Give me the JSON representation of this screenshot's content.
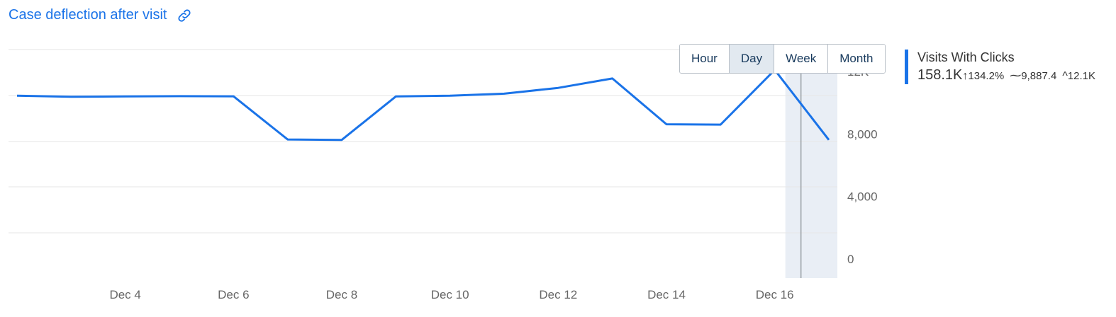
{
  "header": {
    "title": "Case deflection after visit",
    "link_icon": "link-icon"
  },
  "controls": {
    "granularity": [
      "Hour",
      "Day",
      "Week",
      "Month"
    ],
    "selected": "Day"
  },
  "legend": {
    "series_name": "Visits With Clicks",
    "total": "158.1K",
    "change_symbol": "↑",
    "change": "134.2%",
    "avg_symbol": "⁓",
    "average": "9,887.4",
    "max_symbol": "^",
    "maximum": "12.1K",
    "color": "#1a73e8"
  },
  "chart_data": {
    "type": "line",
    "title": "Case deflection after visit",
    "xlabel": "",
    "ylabel": "",
    "x": [
      "Dec 2",
      "Dec 3",
      "Dec 4",
      "Dec 5",
      "Dec 6",
      "Dec 7",
      "Dec 8",
      "Dec 9",
      "Dec 10",
      "Dec 11",
      "Dec 12",
      "Dec 13",
      "Dec 14",
      "Dec 15",
      "Dec 16",
      "Dec 17"
    ],
    "x_tick_labels": [
      "Dec 4",
      "Dec 6",
      "Dec 8",
      "Dec 10",
      "Dec 12",
      "Dec 14",
      "Dec 16"
    ],
    "y_ticks": [
      0,
      4000,
      8000,
      12000
    ],
    "y_tick_labels": [
      "0",
      "4,000",
      "8,000",
      "12K"
    ],
    "ylim": [
      0,
      14000
    ],
    "grid": true,
    "series": [
      {
        "name": "Visits With Clicks",
        "color": "#1a73e8",
        "values": [
          10450,
          10380,
          10400,
          10420,
          10410,
          7650,
          7620,
          10400,
          10450,
          10580,
          10950,
          11550,
          8620,
          8600,
          12100,
          7620
        ]
      }
    ],
    "highlight_region": [
      "Dec 16",
      "Dec 17"
    ],
    "cursor_at": "Dec 16"
  }
}
